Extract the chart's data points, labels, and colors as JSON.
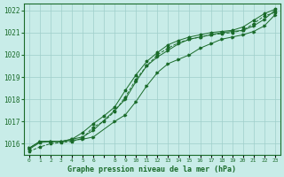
{
  "xlabel": "Graphe pression niveau de la mer (hPa)",
  "bg_color": "#c8ece8",
  "grid_color": "#9fcfca",
  "line_color": "#1a6b2a",
  "text_color": "#1a6b2a",
  "ylim": [
    1015.5,
    1022.3
  ],
  "xlim": [
    -0.5,
    23.5
  ],
  "yticks": [
    1016,
    1017,
    1018,
    1019,
    1020,
    1021,
    1022
  ],
  "xtick_labels": [
    "0",
    "1",
    "2",
    "3",
    "4",
    "5",
    "6",
    "",
    "8",
    "9",
    "10",
    "11",
    "12",
    "13",
    "14",
    "15",
    "16",
    "17",
    "18",
    "19",
    "20",
    "21",
    "22",
    "23"
  ],
  "line1_x": [
    0,
    1,
    2,
    3,
    4,
    5,
    6,
    8,
    9,
    10,
    11,
    12,
    13,
    14,
    15,
    16,
    17,
    18,
    19,
    20,
    21,
    22,
    23
  ],
  "line1": [
    1015.8,
    1016.1,
    1016.1,
    1016.1,
    1016.15,
    1016.2,
    1016.3,
    1017.0,
    1017.3,
    1017.9,
    1018.6,
    1019.2,
    1019.6,
    1019.8,
    1020.0,
    1020.3,
    1020.5,
    1020.7,
    1020.8,
    1020.9,
    1021.05,
    1021.3,
    1021.8
  ],
  "line2_x": [
    0,
    1,
    2,
    3,
    4,
    5,
    6,
    8,
    9,
    10,
    11,
    12,
    13,
    14,
    15,
    16,
    17,
    18,
    19,
    20,
    21,
    22,
    23
  ],
  "line2": [
    1015.8,
    1016.1,
    1016.1,
    1016.1,
    1016.2,
    1016.3,
    1016.6,
    1017.5,
    1018.0,
    1018.8,
    1019.5,
    1019.9,
    1020.2,
    1020.5,
    1020.7,
    1020.8,
    1020.9,
    1021.0,
    1021.05,
    1021.1,
    1021.3,
    1021.6,
    1022.0
  ],
  "line3_x": [
    0,
    1,
    2,
    3,
    4,
    5,
    6,
    7,
    8,
    9,
    10,
    11,
    12,
    13,
    14,
    15,
    16,
    17,
    18,
    19,
    20,
    21,
    22,
    23
  ],
  "line3": [
    1015.75,
    1016.05,
    1016.1,
    1016.1,
    1016.2,
    1016.5,
    1016.9,
    1017.25,
    1017.65,
    1018.4,
    1019.1,
    1019.7,
    1020.1,
    1020.45,
    1020.65,
    1020.8,
    1020.9,
    1021.0,
    1021.05,
    1021.1,
    1021.25,
    1021.55,
    1021.85,
    1022.05
  ],
  "line4_x": [
    0,
    1,
    2,
    3,
    4,
    5,
    6,
    7,
    8,
    9,
    10,
    11,
    12,
    13,
    14,
    15,
    16,
    17,
    18,
    19,
    20,
    21,
    22,
    23
  ],
  "line4": [
    1015.65,
    1015.85,
    1016.0,
    1016.05,
    1016.1,
    1016.25,
    1016.75,
    1017.0,
    1017.45,
    1018.1,
    1018.9,
    1019.5,
    1020.0,
    1020.3,
    1020.55,
    1020.7,
    1020.8,
    1020.9,
    1020.95,
    1021.0,
    1021.1,
    1021.4,
    1021.75,
    1021.9
  ]
}
